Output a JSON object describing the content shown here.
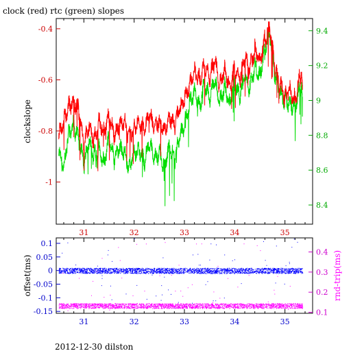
{
  "colors": {
    "red": "#ff0000",
    "green": "#00dd00",
    "blue": "#0000ff",
    "magenta": "#ff00ff",
    "red_axis": "#cc0000",
    "green_axis": "#00aa00",
    "blue_axis": "#0000cc",
    "magenta_axis": "#cc00cc"
  },
  "footer": "2012-12-30 dilston",
  "chart_data": [
    {
      "type": "line",
      "title": "clock (red) rtc (green) slopes",
      "xlabel": "",
      "ylabel": "clockslope",
      "y2label": "",
      "xlim": [
        30.45,
        35.55
      ],
      "ylim": [
        -1.165,
        -0.36
      ],
      "y2lim": [
        8.29,
        9.47
      ],
      "x_ticks": [
        "31",
        "32",
        "33",
        "34",
        "35"
      ],
      "y_ticks": [
        "-0.4",
        "-0.6",
        "-0.8",
        "-1"
      ],
      "y2_ticks": [
        "9.4",
        "9.2",
        "9",
        "8.8",
        "8.6",
        "8.4"
      ],
      "grid": false,
      "series": [
        {
          "name": "clock",
          "color": "#ff0000",
          "axis": "left",
          "x": [
            30.5,
            30.6,
            30.7,
            30.8,
            30.9,
            31.0,
            31.1,
            31.2,
            31.3,
            31.4,
            31.5,
            31.6,
            31.7,
            31.8,
            31.9,
            32.0,
            32.1,
            32.2,
            32.3,
            32.4,
            32.5,
            32.6,
            32.7,
            32.8,
            32.9,
            33.0,
            33.1,
            33.2,
            33.3,
            33.4,
            33.5,
            33.6,
            33.7,
            33.8,
            33.9,
            34.0,
            34.1,
            34.2,
            34.3,
            34.4,
            34.5,
            34.6,
            34.7,
            34.8,
            34.9,
            35.0,
            35.1,
            35.2,
            35.3,
            35.35
          ],
          "y": [
            -0.82,
            -0.76,
            -0.7,
            -0.68,
            -0.72,
            -0.86,
            -0.78,
            -0.84,
            -0.76,
            -0.8,
            -0.74,
            -0.82,
            -0.78,
            -0.76,
            -0.82,
            -0.78,
            -0.76,
            -0.8,
            -0.74,
            -0.78,
            -0.76,
            -0.8,
            -0.74,
            -0.78,
            -0.72,
            -0.68,
            -0.62,
            -0.56,
            -0.6,
            -0.54,
            -0.6,
            -0.52,
            -0.62,
            -0.56,
            -0.62,
            -0.56,
            -0.6,
            -0.52,
            -0.56,
            -0.48,
            -0.52,
            -0.44,
            -0.4,
            -0.56,
            -0.62,
            -0.66,
            -0.64,
            -0.68,
            -0.58,
            -0.62
          ]
        },
        {
          "name": "rtc",
          "color": "#00dd00",
          "axis": "right",
          "x": [
            30.5,
            30.6,
            30.7,
            30.8,
            30.9,
            31.0,
            31.1,
            31.2,
            31.3,
            31.4,
            31.5,
            31.6,
            31.7,
            31.8,
            31.9,
            32.0,
            32.1,
            32.2,
            32.3,
            32.4,
            32.5,
            32.6,
            32.7,
            32.8,
            32.9,
            33.0,
            33.1,
            33.2,
            33.3,
            33.4,
            33.5,
            33.6,
            33.7,
            33.8,
            33.9,
            34.0,
            34.1,
            34.2,
            34.3,
            34.4,
            34.5,
            34.6,
            34.7,
            34.8,
            34.9,
            35.0,
            35.1,
            35.2,
            35.3,
            35.35
          ],
          "y": [
            8.7,
            8.62,
            8.82,
            8.86,
            8.78,
            8.62,
            8.76,
            8.68,
            8.72,
            8.64,
            8.78,
            8.66,
            8.72,
            8.7,
            8.62,
            8.7,
            8.72,
            8.64,
            8.76,
            8.66,
            8.7,
            8.62,
            8.74,
            8.66,
            8.78,
            8.86,
            8.98,
            9.06,
            8.96,
            9.1,
            9.0,
            9.12,
            8.98,
            9.08,
            8.98,
            9.1,
            9.02,
            9.14,
            9.06,
            9.2,
            9.14,
            9.3,
            9.38,
            9.14,
            9.04,
            9.0,
            8.98,
            8.96,
            9.08,
            9.02
          ]
        }
      ]
    },
    {
      "type": "scatter",
      "title": "",
      "xlabel": "",
      "ylabel": "offset(ms)",
      "y2label": "rnd-trip(ms)",
      "xlim": [
        30.45,
        35.55
      ],
      "ylim": [
        -0.157,
        0.12
      ],
      "y2lim": [
        0.095,
        0.47
      ],
      "x_ticks": [
        "31",
        "32",
        "33",
        "34",
        "35"
      ],
      "y_ticks": [
        "0.1",
        "0.05",
        "0",
        "-0.05",
        "-0.1",
        "-0.15"
      ],
      "y2_ticks": [
        "0.4",
        "0.3",
        "0.2",
        "0.1"
      ],
      "grid": false,
      "series": [
        {
          "name": "offset",
          "color": "#0000ff",
          "axis": "left",
          "x_range": [
            30.5,
            35.35
          ],
          "y_band": [
            -0.01,
            0.01
          ]
        },
        {
          "name": "rnd-trip",
          "color": "#ff00ff",
          "axis": "right",
          "x_range": [
            30.5,
            35.35
          ],
          "y_band": [
            0.12,
            0.145
          ]
        }
      ]
    }
  ]
}
